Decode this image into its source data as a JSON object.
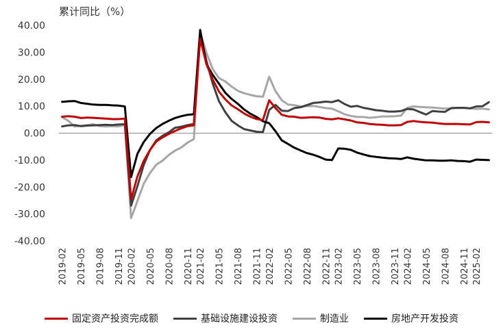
{
  "chart_data": {
    "type": "line",
    "ylabel": "累计同比（%）",
    "xlabel": "",
    "ylim": [
      -40,
      40
    ],
    "yticks": [
      "40.00",
      "30.00",
      "20.00",
      "10.00",
      "0.00",
      "-10.00",
      "-20.00",
      "-30.00",
      "-40.00"
    ],
    "ytick_values": [
      40,
      30,
      20,
      10,
      0,
      -10,
      -20,
      -30,
      -40
    ],
    "x": [
      "2019-02",
      "2019-03",
      "2019-04",
      "2019-05",
      "2019-06",
      "2019-07",
      "2019-08",
      "2019-09",
      "2019-10",
      "2019-11",
      "2019-12",
      "2020-02",
      "2020-03",
      "2020-04",
      "2020-05",
      "2020-06",
      "2020-07",
      "2020-08",
      "2020-09",
      "2020-10",
      "2020-11",
      "2020-12",
      "2021-02",
      "2021-03",
      "2021-04",
      "2021-05",
      "2021-06",
      "2021-07",
      "2021-08",
      "2021-09",
      "2021-10",
      "2021-11",
      "2021-12",
      "2022-02",
      "2022-03",
      "2022-04",
      "2022-05",
      "2022-06",
      "2022-07",
      "2022-08",
      "2022-09",
      "2022-10",
      "2022-11",
      "2022-12",
      "2023-02",
      "2023-03",
      "2023-04",
      "2023-05",
      "2023-06",
      "2023-07",
      "2023-08",
      "2023-09",
      "2023-10",
      "2023-11",
      "2023-12",
      "2024-02",
      "2024-03",
      "2024-04",
      "2024-05",
      "2024-06",
      "2024-07",
      "2024-08",
      "2024-09",
      "2024-10",
      "2024-11",
      "2024-12",
      "2025-02",
      "2025-03",
      "2025-04"
    ],
    "xtick_labels": [
      "2019-02",
      "2019-05",
      "2019-08",
      "2019-11",
      "2020-02",
      "2020-05",
      "2020-08",
      "2020-11",
      "2021-02",
      "2021-05",
      "2021-08",
      "2021-11",
      "2022-02",
      "2022-05",
      "2022-08",
      "2022-11",
      "2023-02",
      "2023-05",
      "2023-08",
      "2023-11",
      "2024-02",
      "2024-05",
      "2024-08",
      "2024-11",
      "2025-02"
    ],
    "grid": false,
    "legend_position": "bottom",
    "series": [
      {
        "name": "固定资产投资完成额",
        "color": "#c00000",
        "values": [
          6.1,
          6.3,
          6.1,
          5.6,
          5.8,
          5.7,
          5.5,
          5.4,
          5.2,
          5.2,
          5.4,
          -24.5,
          -16.1,
          -10.3,
          -6.3,
          -3.1,
          -1.6,
          -0.3,
          0.8,
          1.8,
          2.6,
          2.9,
          35.0,
          25.6,
          19.9,
          15.4,
          12.6,
          10.3,
          8.9,
          7.3,
          6.1,
          5.2,
          4.9,
          12.2,
          9.3,
          6.8,
          6.2,
          6.1,
          5.7,
          5.8,
          5.9,
          5.8,
          5.3,
          5.1,
          5.5,
          5.1,
          4.7,
          4.0,
          3.8,
          3.4,
          3.2,
          3.1,
          2.9,
          2.9,
          3.0,
          4.2,
          4.5,
          4.2,
          4.0,
          3.9,
          3.6,
          3.4,
          3.4,
          3.4,
          3.3,
          3.2,
          4.1,
          4.2,
          4.0
        ]
      },
      {
        "name": "基础设施建设投资",
        "color": "#404040",
        "values": [
          2.5,
          2.9,
          3.0,
          2.6,
          2.8,
          2.9,
          3.0,
          3.1,
          3.0,
          3.2,
          3.3,
          -26.9,
          -19.7,
          -11.8,
          -6.3,
          -2.7,
          -1.0,
          0.3,
          2.0,
          2.4,
          3.0,
          3.4,
          36.6,
          26.8,
          18.4,
          11.8,
          7.8,
          4.6,
          2.9,
          1.5,
          1.0,
          0.5,
          0.4,
          8.6,
          10.5,
          8.3,
          8.2,
          9.3,
          9.6,
          10.4,
          11.2,
          11.4,
          11.7,
          11.5,
          12.2,
          10.8,
          9.8,
          10.1,
          9.4,
          9.0,
          8.5,
          8.3,
          8.0,
          8.0,
          8.2,
          9.0,
          8.8,
          7.8,
          6.9,
          8.2,
          8.0,
          7.9,
          9.3,
          9.4,
          9.4,
          9.2,
          9.9,
          10.0,
          11.5
        ]
      },
      {
        "name": "制造业",
        "color": "#a6a6a6",
        "values": [
          5.9,
          4.6,
          2.5,
          2.7,
          3.0,
          3.3,
          2.6,
          2.5,
          2.6,
          2.5,
          3.1,
          -31.5,
          -25.2,
          -18.8,
          -14.8,
          -11.7,
          -10.2,
          -8.1,
          -6.5,
          -5.3,
          -3.5,
          -2.2,
          37.3,
          29.8,
          23.8,
          20.4,
          19.2,
          17.3,
          15.7,
          14.8,
          14.2,
          13.7,
          13.5,
          20.9,
          15.6,
          12.2,
          10.6,
          10.4,
          9.9,
          10.0,
          10.1,
          9.7,
          9.3,
          9.1,
          8.1,
          7.0,
          6.4,
          6.0,
          6.0,
          5.7,
          5.9,
          6.2,
          6.2,
          6.3,
          6.5,
          9.4,
          9.9,
          9.7,
          9.6,
          9.5,
          9.3,
          9.1,
          9.2,
          9.3,
          9.3,
          9.2,
          9.0,
          9.1,
          8.8
        ]
      },
      {
        "name": "房地产开发投资",
        "color": "#000000",
        "values": [
          11.6,
          11.8,
          11.9,
          11.2,
          10.9,
          10.6,
          10.5,
          10.5,
          10.3,
          10.2,
          9.9,
          -16.3,
          -7.7,
          -3.3,
          -0.3,
          1.9,
          3.4,
          4.6,
          5.6,
          6.3,
          6.8,
          7.0,
          38.3,
          25.6,
          21.6,
          18.3,
          15.0,
          12.7,
          10.9,
          8.8,
          7.2,
          6.0,
          4.4,
          3.7,
          0.7,
          -2.7,
          -4.0,
          -5.4,
          -6.4,
          -7.4,
          -8.0,
          -8.8,
          -9.8,
          -10.0,
          -5.7,
          -5.8,
          -6.2,
          -7.2,
          -7.9,
          -8.5,
          -8.8,
          -9.1,
          -9.3,
          -9.4,
          -9.6,
          -9.0,
          -9.5,
          -9.8,
          -10.1,
          -10.1,
          -10.2,
          -10.2,
          -10.1,
          -10.3,
          -10.4,
          -10.6,
          -9.8,
          -9.9,
          -10.0
        ]
      }
    ]
  }
}
